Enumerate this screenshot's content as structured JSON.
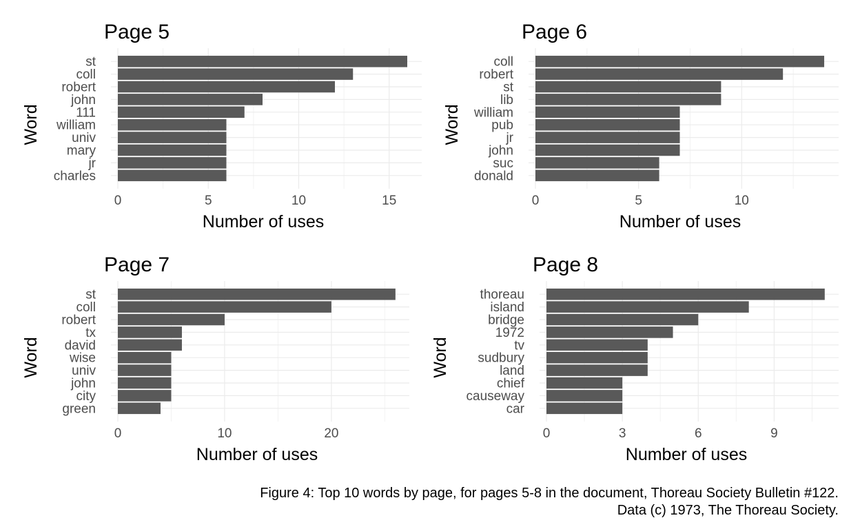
{
  "figure": {
    "caption_line1": "Figure 4: Top 10 words by page, for pages 5-8 in the document, Thoreau Society Bulletin #122.",
    "caption_line2": "Data (c) 1973, The Thoreau Society."
  },
  "colors": {
    "bar": "#595959",
    "grid_major": "#ebebeb",
    "grid_minor": "#f2f2f2",
    "axis_text": "#4d4d4d"
  },
  "chart_data": [
    {
      "type": "bar",
      "orientation": "horizontal",
      "title": "Page 5",
      "xlabel": "Number of uses",
      "ylabel": "Word",
      "categories": [
        "st",
        "coll",
        "robert",
        "john",
        "111",
        "william",
        "univ",
        "mary",
        "jr",
        "charles"
      ],
      "values": [
        16,
        13,
        12,
        8,
        7,
        6,
        6,
        6,
        6,
        6
      ],
      "xlim": [
        0,
        16
      ],
      "xticks": [
        0,
        5,
        10,
        15
      ]
    },
    {
      "type": "bar",
      "orientation": "horizontal",
      "title": "Page 6",
      "xlabel": "Number of uses",
      "ylabel": "Word",
      "categories": [
        "coll",
        "robert",
        "st",
        "lib",
        "william",
        "pub",
        "jr",
        "john",
        "suc",
        "donald"
      ],
      "values": [
        14,
        12,
        9,
        9,
        7,
        7,
        7,
        7,
        6,
        6
      ],
      "xlim": [
        0,
        14
      ],
      "xticks": [
        0,
        5,
        10
      ]
    },
    {
      "type": "bar",
      "orientation": "horizontal",
      "title": "Page 7",
      "xlabel": "Number of uses",
      "ylabel": "Word",
      "categories": [
        "st",
        "coll",
        "robert",
        "tx",
        "david",
        "wise",
        "univ",
        "john",
        "city",
        "green"
      ],
      "values": [
        26,
        20,
        10,
        6,
        6,
        5,
        5,
        5,
        5,
        4
      ],
      "xlim": [
        0,
        26
      ],
      "xticks": [
        0,
        10,
        20
      ]
    },
    {
      "type": "bar",
      "orientation": "horizontal",
      "title": "Page 8",
      "xlabel": "Number of uses",
      "ylabel": "Word",
      "categories": [
        "thoreau",
        "island",
        "bridge",
        "1972",
        "tv",
        "sudbury",
        "land",
        "chief",
        "causeway",
        "car"
      ],
      "values": [
        11,
        8,
        6,
        5,
        4,
        4,
        4,
        3,
        3,
        3
      ],
      "xlim": [
        0,
        11
      ],
      "xticks": [
        0,
        3,
        6,
        9
      ]
    }
  ]
}
